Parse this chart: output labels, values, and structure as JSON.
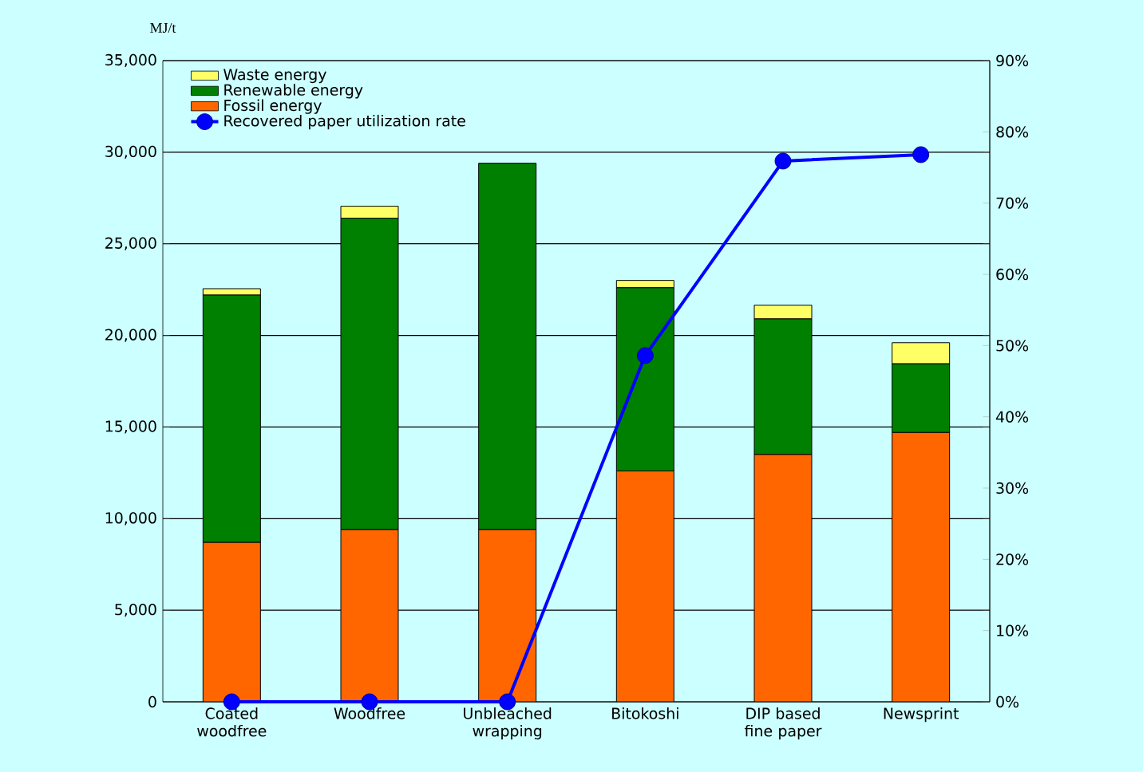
{
  "chart_data": {
    "type": "bar",
    "stacked": true,
    "ylabel": "MJ/t",
    "categories": [
      "Coated woodfree",
      "Woodfree",
      "Unbleached wrapping",
      "Bitokoshi",
      "DIP based fine paper",
      "Newsprint"
    ],
    "series": [
      {
        "name": "Fossil energy",
        "color": "#ff6600",
        "values": [
          8700,
          9400,
          9400,
          12600,
          13500,
          14700
        ]
      },
      {
        "name": "Renewable energy",
        "color": "#008000",
        "values": [
          13500,
          17000,
          20000,
          10000,
          7400,
          3750
        ]
      },
      {
        "name": "Waste energy",
        "color": "#ffff66",
        "values": [
          350,
          650,
          0,
          400,
          750,
          1150
        ]
      },
      {
        "name": "Recovered paper utilization rate",
        "type": "line",
        "axis": "y2",
        "color": "#0000ff",
        "marker": "circle",
        "values": [
          0,
          0,
          0,
          48.6,
          75.9,
          76.8
        ]
      }
    ],
    "ylim": [
      0,
      35000
    ],
    "yticks": [
      0,
      {
        "value": 5000,
        "label": "5,000"
      },
      {
        "value": 10000,
        "label": "10,000"
      },
      {
        "value": 15000,
        "label": "15,000"
      },
      {
        "value": 20000,
        "label": "20,000"
      },
      {
        "value": 25000,
        "label": "25,000"
      },
      {
        "value": 30000,
        "label": "30,000"
      },
      {
        "value": 35000,
        "label": "35,000"
      }
    ],
    "y2lim": [
      0,
      90
    ],
    "y2ticks": [
      {
        "value": 0,
        "label": "0%"
      },
      {
        "value": 10,
        "label": "10%"
      },
      {
        "value": 20,
        "label": "20%"
      },
      {
        "value": 30,
        "label": "30%"
      },
      {
        "value": 40,
        "label": "40%"
      },
      {
        "value": 50,
        "label": "50%"
      },
      {
        "value": 60,
        "label": "60%"
      },
      {
        "value": 70,
        "label": "70%"
      },
      {
        "value": 80,
        "label": "80%"
      },
      {
        "value": 90,
        "label": "90%"
      }
    ],
    "grid": "y",
    "legend": "top left"
  }
}
